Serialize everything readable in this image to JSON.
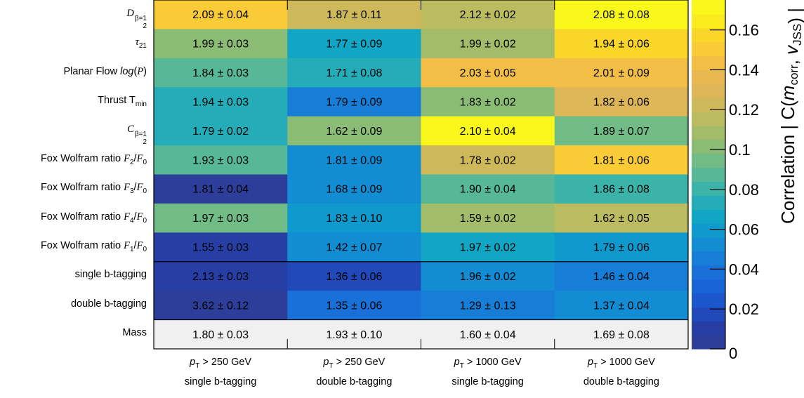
{
  "chart_data": {
    "type": "heatmap",
    "rows": [
      "D2 β=1",
      "τ21",
      "Planar Flow log(P)",
      "Thrust Tmin",
      "C2 β=1",
      "Fox Wolfram ratio F2/F0",
      "Fox Wolfram ratio F3/F0",
      "Fox Wolfram ratio F4/F0",
      "Fox Wolfram ratio F1/F0",
      "single b-tagging",
      "double b-tagging",
      "Mass"
    ],
    "columns": [
      {
        "line1": "pT > 250 GeV",
        "line2": "single b-tagging"
      },
      {
        "line1": "pT > 250 GeV",
        "line2": "double b-tagging"
      },
      {
        "line1": "pT > 1000 GeV",
        "line2": "single b-tagging"
      },
      {
        "line1": "pT > 1000 GeV",
        "line2": "double b-tagging"
      }
    ],
    "cell_text": [
      [
        "2.09 ± 0.04",
        "1.87 ± 0.11",
        "2.12 ± 0.02",
        "2.08 ± 0.08"
      ],
      [
        "1.99 ± 0.03",
        "1.77 ± 0.09",
        "1.99 ± 0.02",
        "1.94 ± 0.06"
      ],
      [
        "1.84 ± 0.03",
        "1.71 ± 0.08",
        "2.03 ± 0.05",
        "2.01 ± 0.09"
      ],
      [
        "1.94 ± 0.03",
        "1.79 ± 0.09",
        "1.83 ± 0.02",
        "1.82 ± 0.06"
      ],
      [
        "1.79 ± 0.02",
        "1.62 ± 0.09",
        "2.10 ± 0.04",
        "1.89 ± 0.07"
      ],
      [
        "1.93 ± 0.03",
        "1.81 ± 0.09",
        "1.78 ± 0.02",
        "1.81 ± 0.06"
      ],
      [
        "1.81 ± 0.04",
        "1.68 ± 0.09",
        "1.90 ± 0.04",
        "1.86 ± 0.08"
      ],
      [
        "1.97 ± 0.03",
        "1.83 ± 0.10",
        "1.59 ± 0.02",
        "1.62 ± 0.05"
      ],
      [
        "1.55 ± 0.03",
        "1.42 ± 0.07",
        "1.97 ± 0.02",
        "1.79 ± 0.06"
      ],
      [
        "2.13 ± 0.03",
        "1.36 ± 0.06",
        "1.96 ± 0.02",
        "1.46 ± 0.04"
      ],
      [
        "3.62 ± 0.12",
        "1.35 ± 0.06",
        "1.29 ± 0.13",
        "1.37 ± 0.04"
      ],
      [
        "1.80 ± 0.03",
        "1.93 ± 0.10",
        "1.60 ± 0.04",
        "1.69 ± 0.08"
      ]
    ],
    "correlation": [
      [
        0.15,
        0.12,
        0.115,
        0.172
      ],
      [
        0.1,
        0.065,
        0.105,
        0.16
      ],
      [
        0.09,
        0.075,
        0.14,
        0.14
      ],
      [
        0.075,
        0.045,
        0.1,
        0.13
      ],
      [
        0.075,
        0.1,
        0.172,
        0.095
      ],
      [
        0.09,
        0.05,
        0.125,
        0.15
      ],
      [
        0.0,
        0.055,
        0.085,
        0.08
      ],
      [
        0.095,
        0.06,
        0.11,
        0.115
      ],
      [
        0.01,
        0.05,
        0.065,
        0.06
      ],
      [
        0.01,
        0.02,
        0.05,
        0.045
      ],
      [
        0.005,
        0.035,
        0.045,
        0.055
      ],
      [
        null,
        null,
        null,
        null
      ]
    ],
    "colorbar": {
      "label": "Correlation | C(m_corr, v_JSS) |",
      "range": [
        0,
        0.175
      ],
      "ticks": [
        {
          "value": 0,
          "label": "0"
        },
        {
          "value": 0.02,
          "label": "0.02"
        },
        {
          "value": 0.04,
          "label": "0.04"
        },
        {
          "value": 0.06,
          "label": "0.06"
        },
        {
          "value": 0.08,
          "label": "0.08"
        },
        {
          "value": 0.1,
          "label": "0.1"
        },
        {
          "value": 0.12,
          "label": "0.12"
        },
        {
          "value": 0.14,
          "label": "0.14"
        },
        {
          "value": 0.16,
          "label": "0.16"
        }
      ],
      "colors": [
        "#2c3e99",
        "#273fa5",
        "#2149b9",
        "#1b56cc",
        "#1863d5",
        "#1970d8",
        "#167ed6",
        "#128cd3",
        "#0f99cc",
        "#10a6c4",
        "#24adb8",
        "#3cb3a8",
        "#56b897",
        "#70bb86",
        "#8bbc76",
        "#a3bc6a",
        "#bbbb60",
        "#cdb95a",
        "#dcb657",
        "#e9b851",
        "#f2be46",
        "#f8cb37",
        "#fad628",
        "#faeb1e",
        "#f9f81a"
      ],
      "color_mode": "banded"
    },
    "mass_row_color": "#f0f0f0"
  }
}
